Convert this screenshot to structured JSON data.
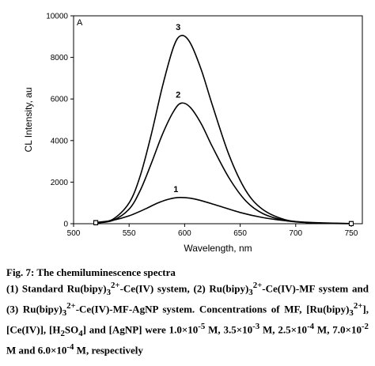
{
  "chart_data": {
    "type": "line",
    "title": "",
    "panel_label": "A",
    "xlabel": "Wavelength, nm",
    "ylabel": "CL Intensity, au",
    "xlim": [
      500,
      760
    ],
    "ylim": [
      0,
      10000
    ],
    "x_ticks": [
      500,
      550,
      600,
      650,
      700,
      750
    ],
    "y_ticks": [
      0,
      2000,
      4000,
      6000,
      8000,
      10000
    ],
    "grid": false,
    "series": [
      {
        "label": "1",
        "color": "#000000",
        "x": [
          520,
          535,
          550,
          565,
          575,
          585,
          595,
          605,
          615,
          630,
          650,
          670,
          690,
          710,
          730,
          750
        ],
        "y": [
          60,
          160,
          380,
          720,
          980,
          1170,
          1260,
          1230,
          1110,
          870,
          540,
          300,
          150,
          70,
          30,
          10
        ]
      },
      {
        "label": "2",
        "color": "#000000",
        "x": [
          520,
          535,
          550,
          560,
          570,
          580,
          590,
          597,
          605,
          615,
          625,
          640,
          655,
          670,
          690,
          710,
          730,
          750
        ],
        "y": [
          40,
          150,
          700,
          1600,
          2900,
          4300,
          5400,
          5800,
          5600,
          4800,
          3700,
          2200,
          1100,
          500,
          160,
          50,
          15,
          5
        ]
      },
      {
        "label": "3",
        "color": "#000000",
        "x": [
          520,
          535,
          550,
          560,
          570,
          580,
          590,
          597,
          605,
          615,
          625,
          640,
          655,
          670,
          690,
          710,
          730,
          750
        ],
        "y": [
          50,
          200,
          1000,
          2300,
          4300,
          6600,
          8500,
          9050,
          8700,
          7400,
          5700,
          3300,
          1600,
          700,
          200,
          60,
          20,
          5
        ]
      }
    ]
  },
  "caption": {
    "title": "Fig. 7: The chemiluminescence spectra",
    "body_html": "(1) Standard Ru(bipy)<sub>3</sub><sup>2+</sup>-Ce(IV) system, (2) Ru(bipy)<sub>3</sub><sup>2+</sup>-Ce(IV)-MF system and (3) Ru(bipy)<sub>3</sub><sup>2+</sup>-Ce(IV)-MF-AgNP system. Concentrations of MF, [Ru(bipy)<sub>3</sub><sup>2+</sup>], [Ce(IV)], [H<sub>2</sub>SO<sub>4</sub>] and [AgNP] were 1.0×10<sup>-5</sup> M, 3.5×10<sup>-3</sup> M, 2.5×10<sup>-4</sup> M, 7.0×10<sup>-2</sup> M and 6.0×10<sup>-4</sup> M, respectively"
  }
}
